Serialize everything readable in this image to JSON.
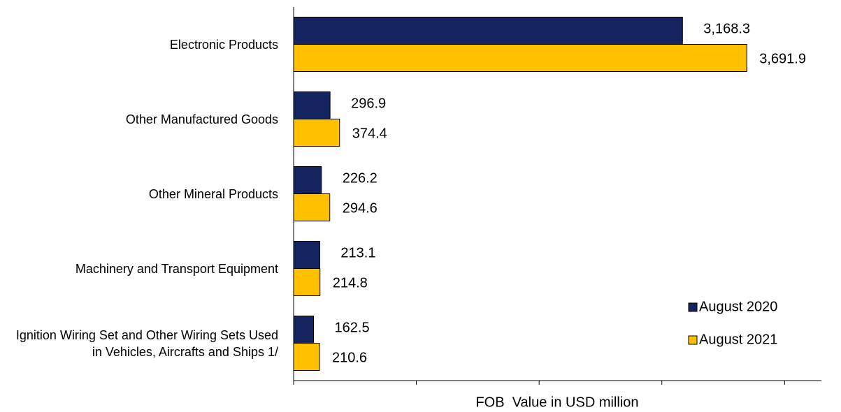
{
  "chart_data": {
    "type": "bar",
    "orientation": "horizontal",
    "x_label": "FOB  Value in USD million",
    "categories": [
      "Electronic Products",
      "Other Manufactured Goods",
      "Other Mineral Products",
      "Machinery and Transport Equipment",
      "Ignition Wiring Set and Other Wiring Sets Used in Vehicles, Aircrafts and Ships 1/"
    ],
    "series": [
      {
        "name": "August 2020",
        "color": "#14245e",
        "values": [
          3168.3,
          296.9,
          226.2,
          213.1,
          162.5
        ],
        "value_labels": [
          "3,168.3",
          "296.9",
          "226.2",
          "213.1",
          "162.5"
        ]
      },
      {
        "name": "August 2021",
        "color": "#ffc000",
        "values": [
          3691.9,
          374.4,
          294.6,
          214.8,
          210.6
        ],
        "value_labels": [
          "3,691.9",
          "374.4",
          "294.6",
          "214.8",
          "210.6"
        ]
      }
    ],
    "xlim": [
      0,
      4300
    ],
    "xticks": [
      0,
      1000,
      2000,
      3000,
      4000
    ],
    "legend": "lower right"
  }
}
